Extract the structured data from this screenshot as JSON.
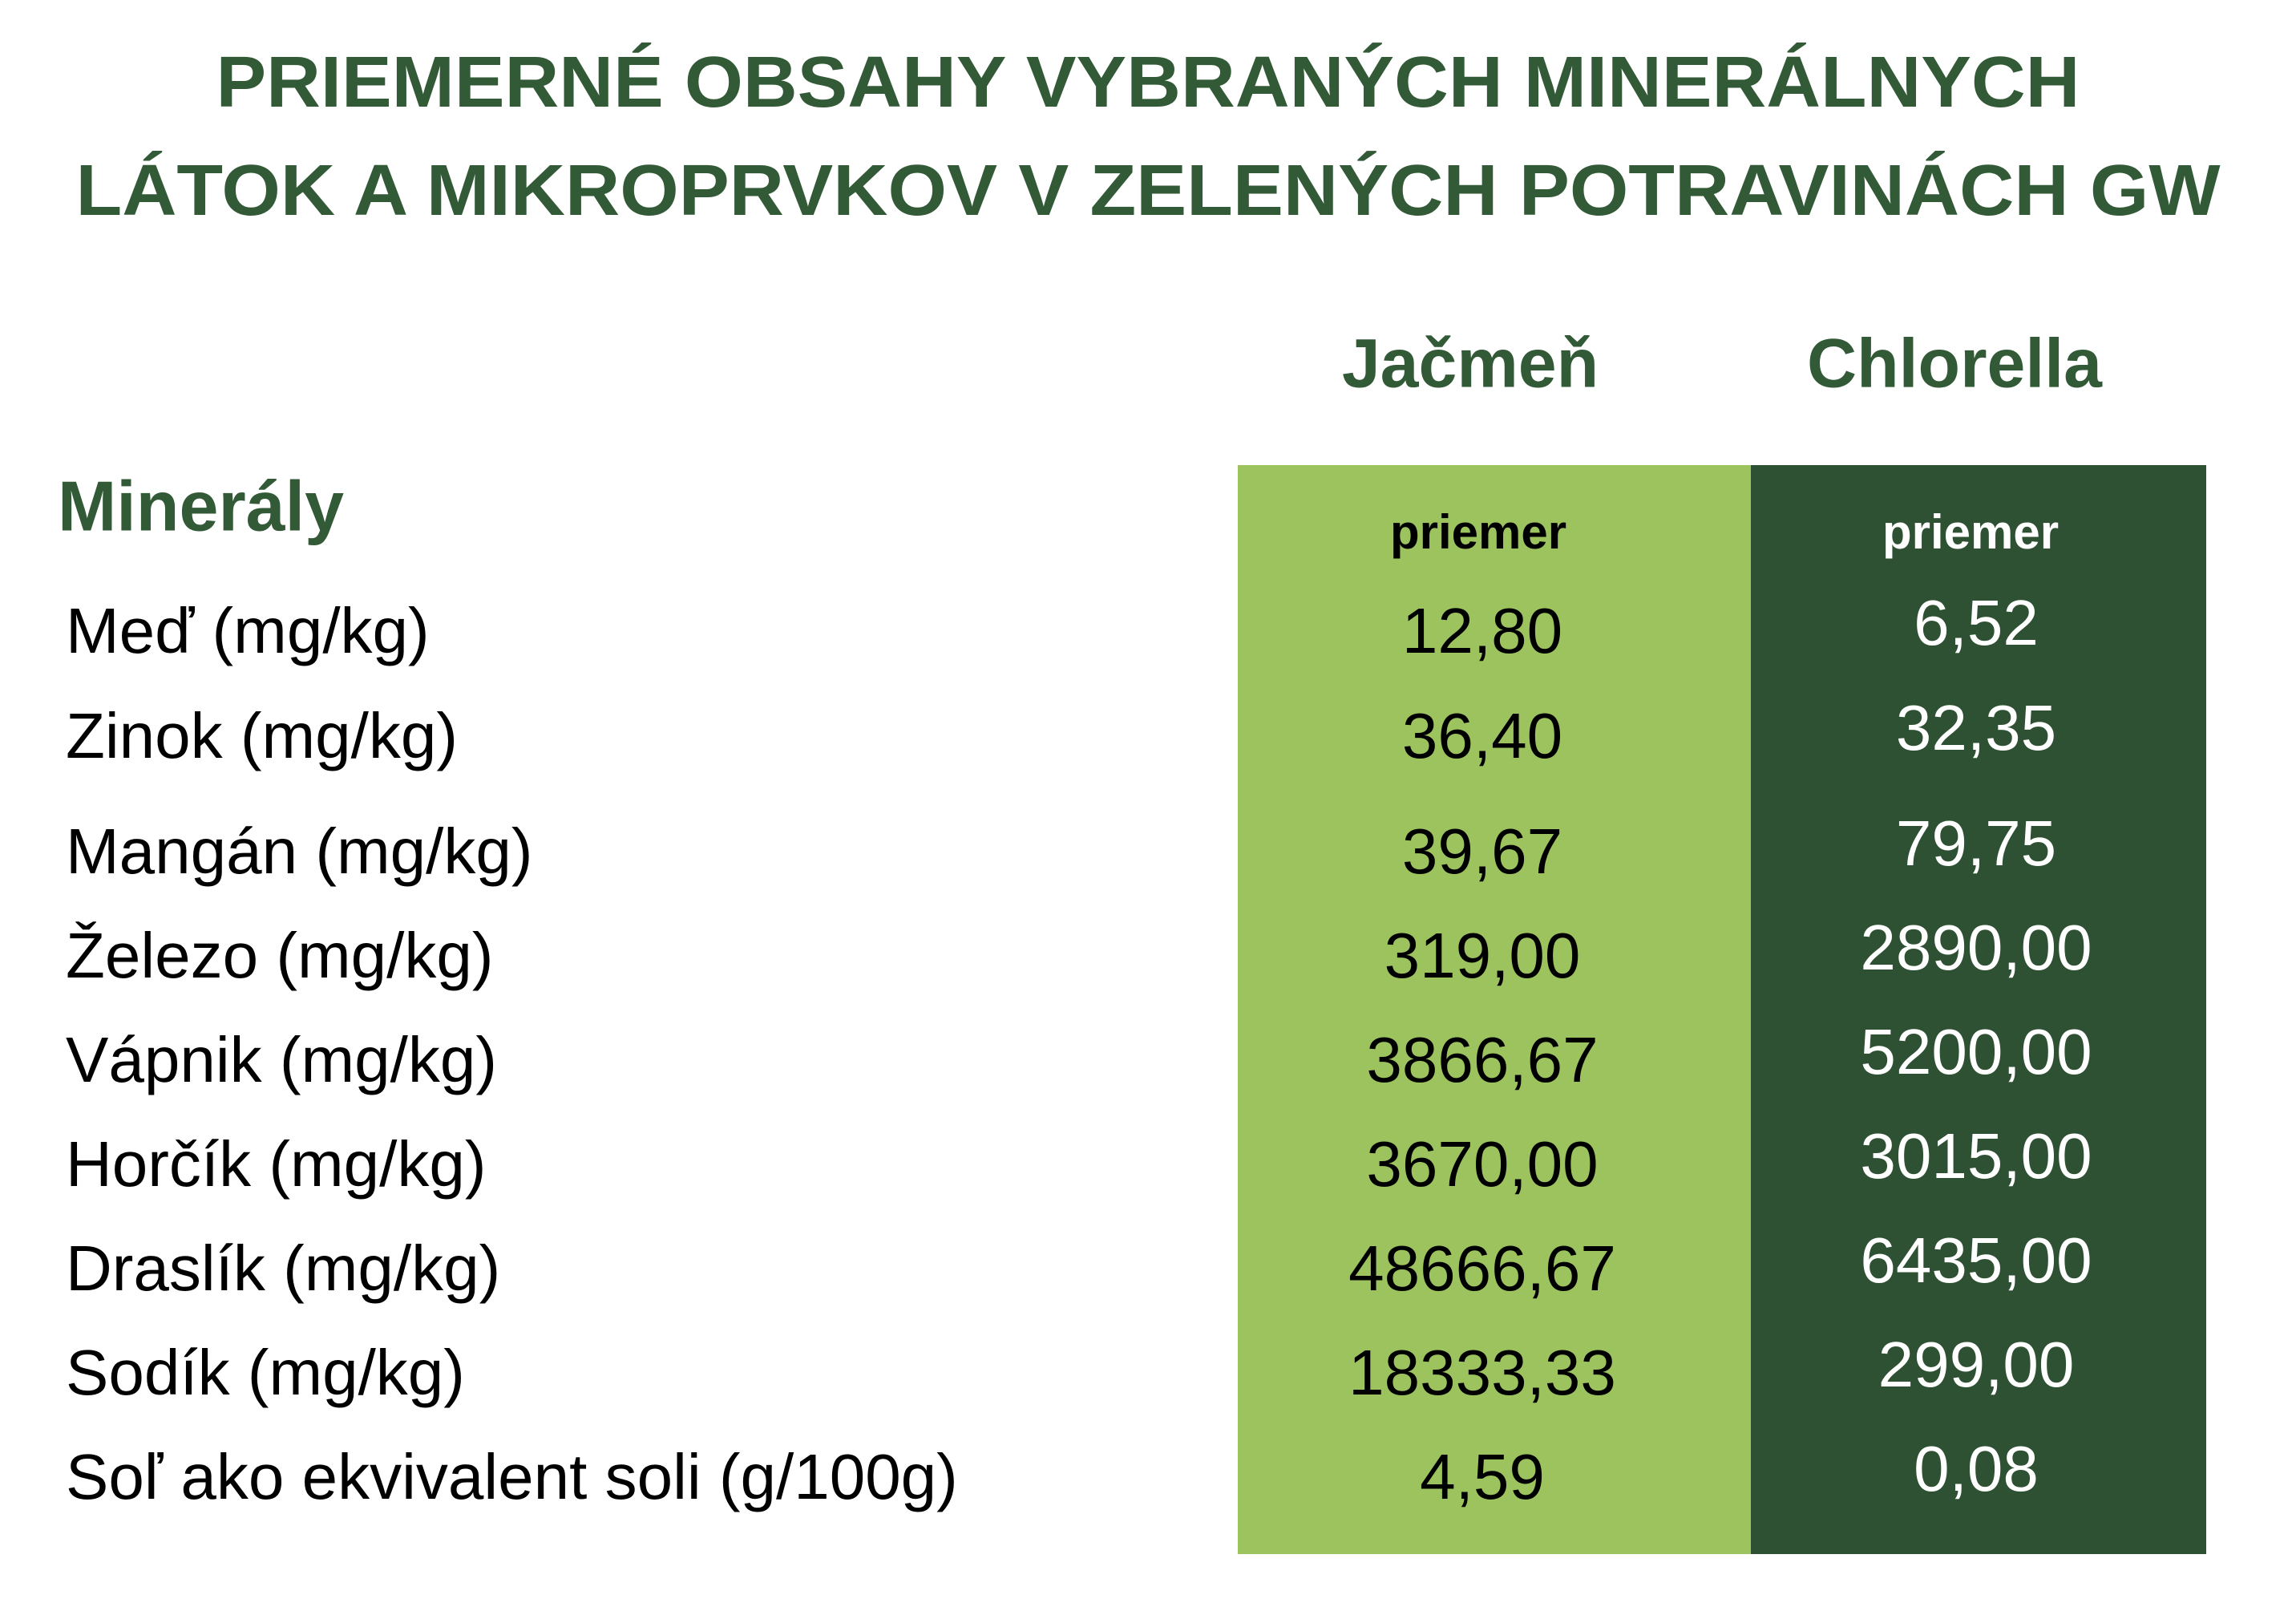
{
  "header": {
    "title": [
      "PRIEMERNÉ OBSAHY VYBRANÝCH MINERÁLNYCH",
      "LÁTOK A MIKROPRVKOV V ZELENÝCH POTRAVINÁCH GW"
    ]
  },
  "table": {
    "row_header": "Minerály",
    "columns": [
      {
        "name": "Jačmeň",
        "subheader": "priemer"
      },
      {
        "name": "Chlorella",
        "subheader": "priemer"
      }
    ],
    "rows": [
      [
        "Meď (mg/kg)",
        "12,80",
        "6,52"
      ],
      [
        "Zinok (mg/kg)",
        "36,40",
        "32,35"
      ],
      [
        "Mangán (mg/kg)",
        "39,67",
        "79,75"
      ],
      [
        "Železo (mg/kg)",
        "319,00",
        "2890,00"
      ],
      [
        "Vápnik (mg/kg)",
        "3866,67",
        "5200,00"
      ],
      [
        "Horčík (mg/kg)",
        "3670,00",
        "3015,00"
      ],
      [
        "Draslík (mg/kg)",
        "48666,67",
        "6435,00"
      ],
      [
        "Sodík (mg/kg)",
        "18333,33",
        "299,00"
      ],
      [
        "Soľ ako ekvivalent soli (g/100g)",
        "4,59",
        "0,08"
      ]
    ]
  }
}
